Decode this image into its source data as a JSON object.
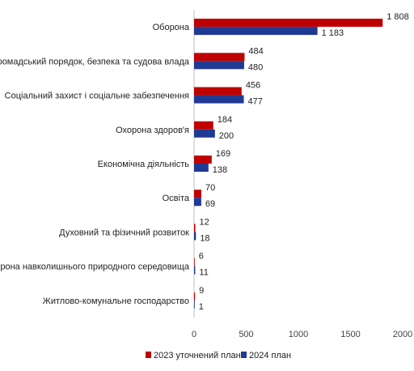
{
  "chart_data": {
    "type": "bar",
    "orientation": "horizontal",
    "categories": [
      "Оборона",
      "Громадський порядок, безпека та судова влада",
      "Соціальний захист і соціальне забезпечення",
      "Охорона здоров'я",
      "Економічна діяльність",
      "Освіта",
      "Духовний та фізичний розвиток",
      "Охорона навколишнього природного середовища",
      "Житлово-комунальне господарство"
    ],
    "series": [
      {
        "name": "2023 уточнений план",
        "color": "#c00000",
        "values": [
          1808,
          484,
          456,
          184,
          169,
          70,
          12,
          6,
          9
        ]
      },
      {
        "name": "2024 план",
        "color": "#1f3a93",
        "values": [
          1183,
          480,
          477,
          200,
          138,
          69,
          18,
          11,
          1
        ]
      }
    ],
    "value_labels": [
      [
        "1 808",
        "484",
        "456",
        "184",
        "169",
        "70",
        "12",
        "6",
        "9"
      ],
      [
        "1 183",
        "480",
        "477",
        "200",
        "138",
        "69",
        "18",
        "11",
        "1"
      ]
    ],
    "xlim": [
      0,
      2000
    ],
    "xticks": [
      0,
      500,
      1000,
      1500,
      2000
    ],
    "xtick_labels": [
      "0",
      "500",
      "1000",
      "1500",
      "2000"
    ],
    "legend_position": "bottom",
    "grid": false
  }
}
